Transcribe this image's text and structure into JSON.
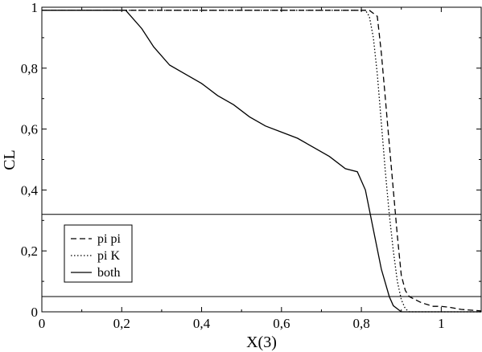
{
  "chart_data": {
    "type": "line",
    "title": "",
    "xlabel": "X(3)",
    "ylabel": "CL",
    "xlim": [
      0,
      1.1
    ],
    "ylim": [
      0,
      1
    ],
    "x_ticks": [
      0,
      0.2,
      0.4,
      0.6,
      0.8,
      1
    ],
    "x_tick_labels": [
      "0",
      "0,2",
      "0,4",
      "0,6",
      "0,8",
      "1"
    ],
    "y_ticks": [
      0,
      0.2,
      0.4,
      0.6,
      0.8,
      1
    ],
    "y_tick_labels": [
      "0",
      "0,2",
      "0,4",
      "0,6",
      "0,8",
      "1"
    ],
    "grid": false,
    "legend_position": "bottom-left",
    "reference_lines": [
      0.32,
      0.05
    ],
    "series": [
      {
        "name": "pi pi",
        "style": "dashed",
        "x": [
          0,
          0.2,
          0.4,
          0.6,
          0.8,
          0.82,
          0.83,
          0.84,
          0.85,
          0.86,
          0.87,
          0.88,
          0.89,
          0.9,
          0.91,
          0.92,
          0.95,
          0.98,
          1.0,
          1.02,
          1.05,
          1.1
        ],
        "y": [
          0.99,
          0.99,
          0.99,
          0.99,
          0.99,
          0.99,
          0.98,
          0.97,
          0.85,
          0.7,
          0.55,
          0.4,
          0.25,
          0.12,
          0.07,
          0.05,
          0.03,
          0.018,
          0.018,
          0.015,
          0.008,
          0.003
        ]
      },
      {
        "name": "pi K",
        "style": "dotted",
        "x": [
          0,
          0.2,
          0.4,
          0.6,
          0.8,
          0.81,
          0.82,
          0.83,
          0.84,
          0.85,
          0.86,
          0.87,
          0.88,
          0.89,
          0.9,
          0.91,
          0.92,
          0.95,
          1.0,
          1.1
        ],
        "y": [
          0.99,
          0.99,
          0.99,
          0.99,
          0.99,
          0.99,
          0.97,
          0.9,
          0.78,
          0.62,
          0.46,
          0.32,
          0.2,
          0.1,
          0.04,
          0.01,
          0.0,
          0.0,
          0.0,
          0.0
        ]
      },
      {
        "name": "both",
        "style": "solid",
        "x": [
          0,
          0.1,
          0.21,
          0.25,
          0.28,
          0.32,
          0.36,
          0.4,
          0.44,
          0.48,
          0.52,
          0.56,
          0.6,
          0.64,
          0.68,
          0.72,
          0.76,
          0.79,
          0.81,
          0.83,
          0.85,
          0.87,
          0.88,
          0.9,
          0.92,
          1.0,
          1.1
        ],
        "y": [
          0.99,
          0.99,
          0.99,
          0.93,
          0.87,
          0.81,
          0.78,
          0.75,
          0.71,
          0.68,
          0.64,
          0.61,
          0.59,
          0.57,
          0.54,
          0.51,
          0.47,
          0.46,
          0.4,
          0.27,
          0.14,
          0.05,
          0.02,
          0.0,
          0.0,
          0.0,
          0.0
        ]
      }
    ]
  }
}
